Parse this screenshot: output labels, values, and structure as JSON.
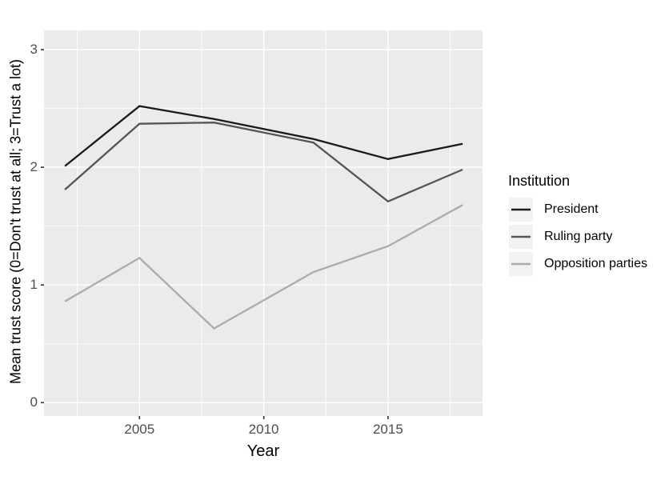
{
  "chart_data": {
    "type": "line",
    "title": "",
    "xlabel": "Year",
    "ylabel": "Mean trust score (0=Don't trust at all; 3=Trust a lot)",
    "x": [
      2002,
      2005,
      2008,
      2012,
      2015,
      2018
    ],
    "series": [
      {
        "name": "President",
        "color": "#1a1a1a",
        "values": [
          2.01,
          2.52,
          2.41,
          2.24,
          2.07,
          2.2
        ]
      },
      {
        "name": "Ruling party",
        "color": "#555555",
        "values": [
          1.81,
          2.37,
          2.38,
          2.21,
          1.71,
          1.98
        ]
      },
      {
        "name": "Opposition parties",
        "color": "#ababab",
        "values": [
          0.86,
          1.23,
          0.63,
          1.11,
          1.33,
          1.68
        ]
      }
    ],
    "x_ticks": [
      "2005",
      "2010",
      "2015"
    ],
    "y_ticks": [
      "0",
      "1",
      "2",
      "3"
    ],
    "x_tick_values": [
      2005,
      2010,
      2015
    ],
    "y_tick_values": [
      0,
      1,
      2,
      3
    ],
    "x_minor_values": [
      2002.5,
      2007.5,
      2012.5,
      2017.5
    ],
    "y_minor_values": [
      0.5,
      1.5,
      2.5
    ],
    "xlim": [
      2001.2,
      2018.8
    ],
    "ylim": [
      -0.11,
      3.16
    ],
    "grid": true,
    "legend_title": "Institution",
    "legend_position": "right",
    "colors": {
      "panel_bg": "#EBEBEB",
      "grid": "#FFFFFF",
      "tick_mark": "#333333",
      "tick_label": "#4d4d4d",
      "legend_key_bg": "#F2F2F2"
    }
  }
}
